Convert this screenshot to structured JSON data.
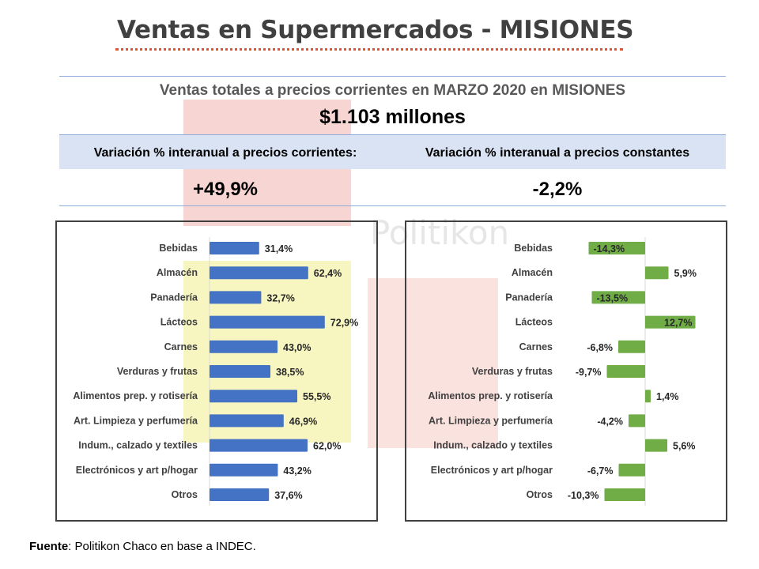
{
  "header": {
    "title": "Ventas en Supermercados - MISIONES",
    "subtitle": "Ventas totales a precios corrientes en MARZO 2020 en MISIONES",
    "total": "$1.103 millones",
    "var_corrientes_label": "Variación % interanual a precios corrientes:",
    "var_constantes_label": "Variación % interanual a precios constantes",
    "var_corrientes_value": "+49,9%",
    "var_constantes_value": "-2,2%"
  },
  "watermark": "Politikon",
  "source": {
    "label": "Fuente",
    "text": ": Politikon Chaco en base a INDEC."
  },
  "colors": {
    "bar_left": "#4472c4",
    "bar_right": "#70ad47",
    "band": "#dae3f3",
    "title_dots": "#e2552a"
  },
  "chart_data": [
    {
      "type": "bar",
      "orientation": "horizontal",
      "categories": [
        "Bebidas",
        "Almacén",
        "Panadería",
        "Lácteos",
        "Carnes",
        "Verduras y frutas",
        "Alimentos prep. y rotisería",
        "Art. Limpieza y perfumería",
        "Indum., calzado y textiles",
        "Electrónicos y art p/hogar",
        "Otros"
      ],
      "values": [
        31.4,
        62.4,
        32.7,
        72.9,
        43.0,
        38.5,
        55.5,
        46.9,
        62.0,
        43.2,
        37.6
      ],
      "value_labels": [
        "31,4%",
        "62,4%",
        "32,7%",
        "72,9%",
        "43,0%",
        "38,5%",
        "55,5%",
        "46,9%",
        "62,0%",
        "43,2%",
        "37,6%"
      ],
      "xlim": [
        0,
        75
      ]
    },
    {
      "type": "bar",
      "orientation": "horizontal",
      "categories": [
        "Bebidas",
        "Almacén",
        "Panadería",
        "Lácteos",
        "Carnes",
        "Verduras y frutas",
        "Alimentos prep. y rotisería",
        "Art. Limpieza y perfumería",
        "Indum., calzado y textiles",
        "Electrónicos y art p/hogar",
        "Otros"
      ],
      "values": [
        -14.3,
        5.9,
        -13.5,
        12.7,
        -6.8,
        -9.7,
        1.4,
        -4.2,
        5.6,
        -6.7,
        -10.3
      ],
      "value_labels": [
        "-14,3%",
        "5,9%",
        "-13,5%",
        "12,7%",
        "-6,8%",
        "-9,7%",
        "1,4%",
        "-4,2%",
        "5,6%",
        "-6,7%",
        "-10,3%"
      ],
      "xlim": [
        -16,
        14
      ]
    }
  ]
}
